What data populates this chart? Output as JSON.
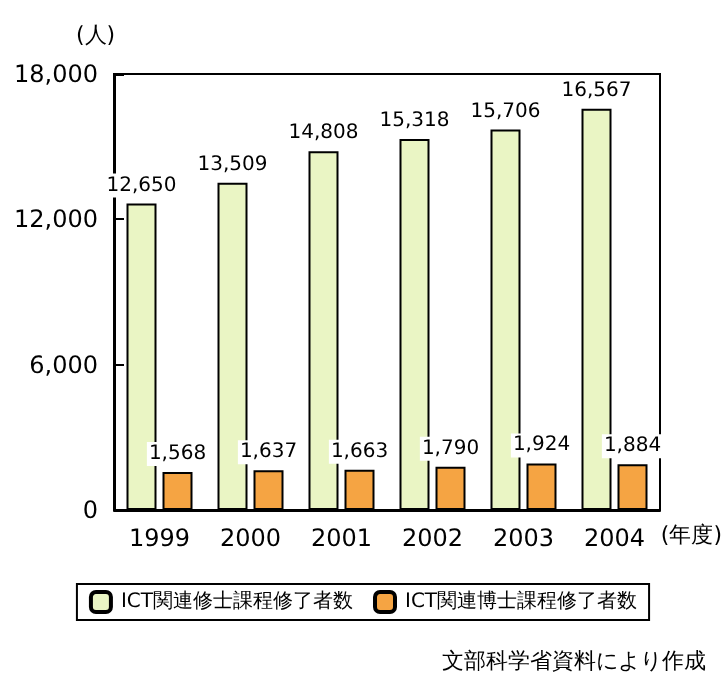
{
  "chart_data": {
    "type": "bar",
    "ylabel": "(人)",
    "xlabel": "(年度)",
    "categories": [
      "1999",
      "2000",
      "2001",
      "2002",
      "2003",
      "2004"
    ],
    "series": [
      {
        "name": "ICT関連修士課程修了者数",
        "color": "#eaf5c4",
        "values": [
          12650,
          13509,
          14808,
          15318,
          15706,
          16567
        ],
        "value_labels": [
          "12,650",
          "13,509",
          "14,808",
          "15,318",
          "15,706",
          "16,567"
        ]
      },
      {
        "name": "ICT関連博士課程修了者数",
        "color": "#f5a443",
        "values": [
          1568,
          1637,
          1663,
          1790,
          1924,
          1884
        ],
        "value_labels": [
          "1,568",
          "1,637",
          "1,663",
          "1,790",
          "1,924",
          "1,884"
        ]
      }
    ],
    "ylim": [
      0,
      18000
    ],
    "yticks": [
      0,
      {
        "value": 6000,
        "label": "6,000"
      },
      {
        "value": 12000,
        "label": "12,000"
      },
      {
        "value": 18000,
        "label": "18,000"
      }
    ],
    "legend": "bottom",
    "grid": false,
    "annotations": [
      "文部科学省資料により作成"
    ]
  }
}
